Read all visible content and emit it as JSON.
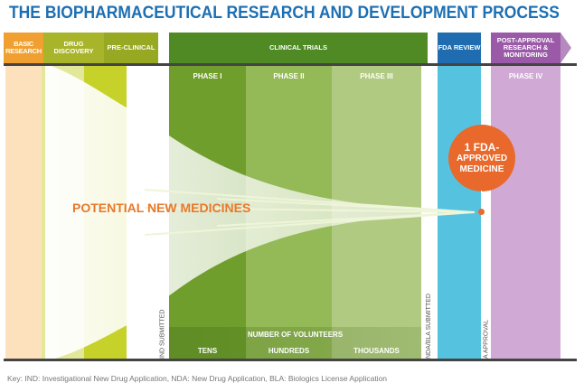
{
  "title": "THE BIOPHARMACEUTICAL RESEARCH AND DEVELOPMENT PROCESS",
  "stages": {
    "basic": "BASIC RESEARCH",
    "discovery": "DRUG DISCOVERY",
    "preclinical": "PRE-CLINICAL",
    "clinical": "CLINICAL TRIALS",
    "fda": "FDA REVIEW",
    "post": "POST-APPROVAL RESEARCH & MONITORING"
  },
  "phases": {
    "p1": "PHASE I",
    "p2": "PHASE II",
    "p3": "PHASE III",
    "p4": "PHASE IV"
  },
  "milestones": {
    "ind": "IND SUBMITTED",
    "nda": "NDA/BLA SUBMITTED",
    "approval": "A APPROVAL"
  },
  "potential": "POTENTIAL NEW MEDICINES",
  "approved": {
    "line1": "1 FDA-",
    "line2": "APPROVED",
    "line3": "MEDICINE"
  },
  "volunteers": {
    "title": "NUMBER OF VOLUNTEERS",
    "tens": "TENS",
    "hundreds": "HUNDREDS",
    "thousands": "THOUSANDS"
  },
  "key": "Key: IND: Investigational New Drug Application, NDA: New Drug Application, BLA: Biologics License Application",
  "colors": {
    "title": "#1c6fb3",
    "orange": "#e8892b",
    "fda": "#1f6db0",
    "post": "#9b5aa8"
  }
}
